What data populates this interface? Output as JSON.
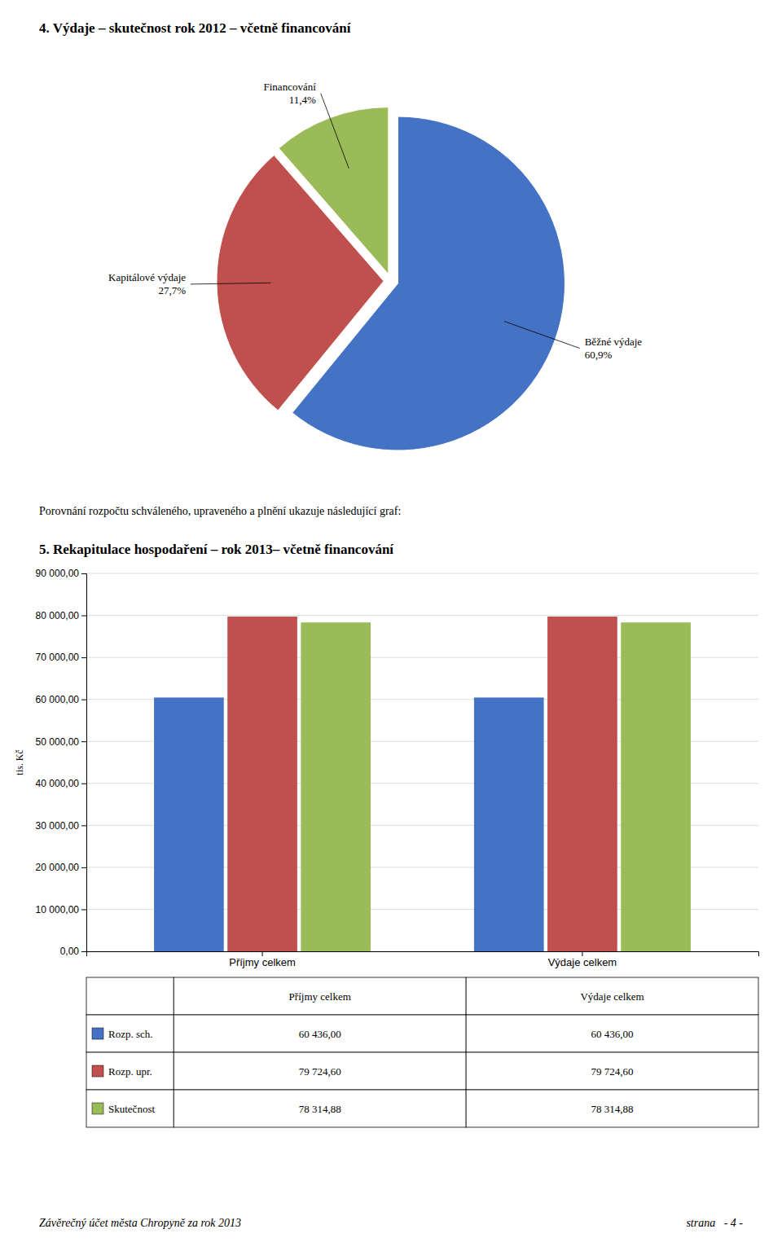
{
  "chart_data": [
    {
      "type": "pie",
      "title": "4.   Výdaje – skutečnost rok 2012 – včetně financování",
      "categories": [
        "Běžné výdaje",
        "Kapitálové výdaje",
        "Financování"
      ],
      "values": [
        60.9,
        27.7,
        11.4
      ],
      "value_labels": [
        "60,9%",
        "27,7%",
        "11,4%"
      ],
      "colors": [
        "#4472C4",
        "#C0504D",
        "#9BBB59"
      ],
      "data_labels": true
    },
    {
      "type": "bar",
      "title": "5.   Rekapitulace hospodaření – rok 2013– včetně financování",
      "categories": [
        "Příjmy celkem",
        "Výdaje celkem"
      ],
      "series": [
        {
          "name": "Rozp. sch.",
          "color": "#4472C4",
          "values": [
            60436.0,
            60436.0
          ],
          "value_labels": [
            "60 436,00",
            "60 436,00"
          ]
        },
        {
          "name": "Rozp. upr.",
          "color": "#C0504D",
          "values": [
            79724.6,
            79724.6
          ],
          "value_labels": [
            "79 724,60",
            "79 724,60"
          ]
        },
        {
          "name": "Skutečnost",
          "color": "#9BBB59",
          "values": [
            78314.88,
            78314.88
          ],
          "value_labels": [
            "78 314,88",
            "78 314,88"
          ]
        }
      ],
      "ylabel": "tis. Kč",
      "ylim": [
        0,
        90000
      ],
      "yticks": [
        {
          "value": 0,
          "label": "0,00"
        },
        {
          "value": 10000,
          "label": "10 000,00"
        },
        {
          "value": 20000,
          "label": "20 000,00"
        },
        {
          "value": 30000,
          "label": "30 000,00"
        },
        {
          "value": 40000,
          "label": "40 000,00"
        },
        {
          "value": 50000,
          "label": "50 000,00"
        },
        {
          "value": 60000,
          "label": "60 000,00"
        },
        {
          "value": 70000,
          "label": "70 000,00"
        },
        {
          "value": 80000,
          "label": "80 000,00"
        },
        {
          "value": 90000,
          "label": "90 000,00"
        }
      ],
      "grid": true
    }
  ],
  "page": {
    "middle_text": "Porovnání rozpočtu schváleného, upraveného a plnění ukazuje následující graf:",
    "footer_left": "Závěrečný účet města Chropyně za rok 2013",
    "footer_right": "strana   - 4 -"
  }
}
